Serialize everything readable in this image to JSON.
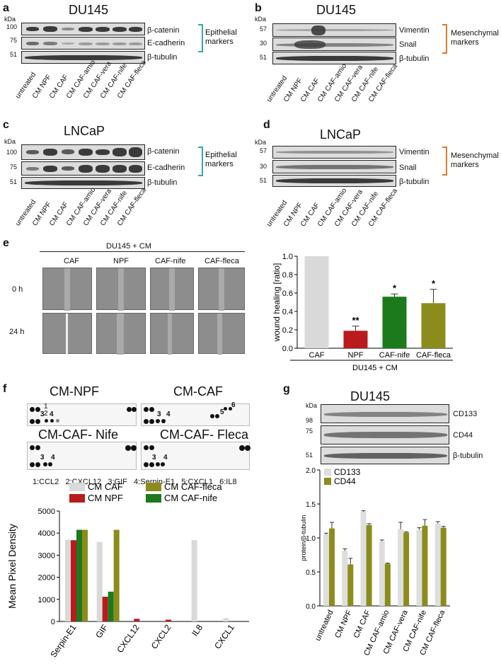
{
  "panel_a": {
    "label": "a",
    "title": "DU145",
    "kda": "kDa",
    "mw": [
      "100",
      "75",
      "51"
    ],
    "markers": [
      "β-catenin",
      "E-cadherin",
      "β-tubulin"
    ],
    "group": "Epithelial markers",
    "lanes": [
      "untreated",
      "CM NPF",
      "CM CAF",
      "CM CAF-amio",
      "CM CAF-vera",
      "CM CAF-nife",
      "CM CAF-fleca"
    ]
  },
  "panel_b": {
    "label": "b",
    "title": "DU145",
    "kda": "kDa",
    "mw": [
      "57",
      "30",
      "51"
    ],
    "markers": [
      "Vimentin",
      "Snail",
      "β-tubulin"
    ],
    "group": "Mesenchymal markers",
    "lanes": [
      "untreated",
      "CM NPF",
      "CM CAF",
      "CM CAF-amio",
      "CM CAF-vera",
      "CM CAF-nife",
      "CM CAF-fleca"
    ]
  },
  "panel_c": {
    "label": "c",
    "title": "LNCaP",
    "kda": "kDa",
    "mw": [
      "100",
      "75",
      "51"
    ],
    "markers": [
      "β-catenin",
      "E-cadherin",
      "β-tubulin"
    ],
    "group": "Epithelial markers",
    "lanes": [
      "untreated",
      "CM NPF",
      "CM CAF",
      "CM CAF-amio",
      "CM CAF-vera",
      "CM CAF-nife",
      "CM CAF-fleca"
    ]
  },
  "panel_d": {
    "label": "d",
    "title": "LNCaP",
    "kda": "kDa",
    "mw": [
      "57",
      "30",
      "51"
    ],
    "markers": [
      "Vimentin",
      "Snail",
      "β-tubulin"
    ],
    "group": "Mesenchymal markers",
    "lanes": [
      "untreated",
      "CM NPF",
      "CM CAF",
      "CM CAF-amio",
      "CM CAF-vera",
      "CM CAF-nife",
      "CM CAF-fleca"
    ]
  },
  "panel_e": {
    "label": "e",
    "header": "DU145 + CM",
    "conditions": [
      "CAF",
      "NPF",
      "CAF-nife",
      "CAF-fleca"
    ],
    "rows": [
      "0 h",
      "24 h"
    ]
  },
  "panel_f": {
    "label": "f",
    "arrays": [
      "CM-NPF",
      "CM-CAF",
      "CM-CAF- Nife",
      "CM-CAF- Fleca"
    ],
    "legend_key": "1:CCL2   2:CXCL12   3:GIF   4:Serpin-E1   5:CXCL1   6:IL8"
  },
  "panel_g": {
    "label": "g",
    "title": "DU145",
    "kda": "kDa",
    "mw": [
      "98",
      "75",
      "51"
    ],
    "markers": [
      "CD133",
      "CD44",
      "β-tubulin"
    ]
  },
  "chart_data": [
    {
      "type": "bar",
      "panel": "e",
      "categories": [
        "CAF",
        "NPF",
        "CAF-nife",
        "CAF-fleca"
      ],
      "values": [
        1.0,
        0.19,
        0.56,
        0.49
      ],
      "errors": [
        0,
        0.05,
        0.03,
        0.15
      ],
      "significance": [
        "",
        "**",
        "*",
        "*"
      ],
      "colors": [
        "#d9d9d9",
        "#b81c1c",
        "#1c7a1c",
        "#8c8c1c"
      ],
      "ylabel": "wound healing [ratio]",
      "xlabel": "DU145 + CM",
      "ylim": [
        0,
        1.0
      ],
      "yticks": [
        "0.0",
        "0.2",
        "0.4",
        "0.6",
        "0.8",
        "1.0"
      ]
    },
    {
      "type": "bar",
      "panel": "f",
      "categories": [
        "Serpin-E1",
        "GIF",
        "CXCL12",
        "CXCL2",
        "IL8",
        "CXCL1"
      ],
      "series": [
        {
          "name": "CM CAF",
          "color": "#d9d9d9",
          "values": [
            3700,
            3600,
            0,
            0,
            3680,
            150
          ]
        },
        {
          "name": "CM NPF",
          "color": "#b81c1c",
          "values": [
            3680,
            1120,
            120,
            80,
            0,
            0
          ]
        },
        {
          "name": "CM CAF-nife",
          "color": "#1c7a1c",
          "values": [
            4150,
            1350,
            0,
            0,
            0,
            0
          ]
        },
        {
          "name": "CM CAF-fleca",
          "color": "#8c8c1c",
          "values": [
            4150,
            4150,
            0,
            0,
            0,
            0
          ]
        }
      ],
      "ylabel": "Mean Pixel Density",
      "ylim": [
        0,
        5000
      ],
      "yticks": [
        "0",
        "1000",
        "2000",
        "3000",
        "4000",
        "5000"
      ]
    },
    {
      "type": "bar",
      "panel": "g",
      "categories": [
        "untreated",
        "CM NPF",
        "CM CAF",
        "CM CAF-amio",
        "CM CAF-vera",
        "CM CAF-nife",
        "CM CAF-fleca"
      ],
      "series": [
        {
          "name": "CD133",
          "color": "#dedede",
          "values": [
            1.05,
            0.81,
            1.38,
            0.95,
            1.13,
            1.12,
            1.21
          ],
          "errors": [
            0.02,
            0.03,
            0.02,
            0.02,
            0.1,
            0.03,
            0.03
          ]
        },
        {
          "name": "CD44",
          "color": "#8c8c1c",
          "values": [
            1.14,
            0.61,
            1.19,
            0.62,
            1.08,
            1.18,
            1.15
          ],
          "errors": [
            0.09,
            0.09,
            0.02,
            0.01,
            0.01,
            0.09,
            0.02
          ]
        }
      ],
      "ylabel": "protein/β-tubulin",
      "ylim": [
        0,
        2.0
      ],
      "yticks": [
        "0.0",
        "0.5",
        "1.0",
        "1.5",
        "2.0"
      ]
    }
  ]
}
